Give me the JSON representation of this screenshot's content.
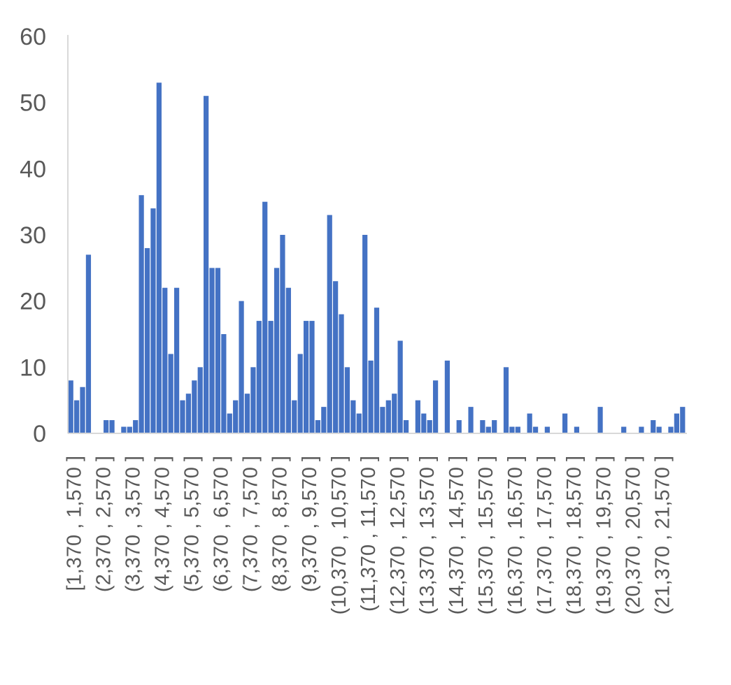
{
  "chart_data": {
    "type": "bar",
    "title": "",
    "xlabel": "",
    "ylabel": "",
    "ylim": [
      0,
      60
    ],
    "yticks": [
      0,
      10,
      20,
      30,
      40,
      50,
      60
    ],
    "grid": false,
    "legend": "none",
    "bar_color": "#4472c4",
    "axis_color": "#d9d9d9",
    "text_color": "#595959",
    "x_tick_labels": [
      "[1,370 , 1,570 ]",
      "(2,370 , 2,570 ]",
      "(3,370 , 3,570 ]",
      "(4,370 , 4,570 ]",
      "(5,370 , 5,570 ]",
      "(6,370 , 6,570 ]",
      "(7,370 , 7,570 ]",
      "(8,370 , 8,570 ]",
      "(9,370 , 9,570 ]",
      "(10,370 , 10,570 ]",
      "(11,370 , 11,570 ]",
      "(12,370 , 12,570 ]",
      "(13,370 , 13,570 ]",
      "(14,370 , 14,570 ]",
      "(15,370 , 15,570 ]",
      "(16,370 , 16,570 ]",
      "(17,370 , 17,570 ]",
      "(18,370 , 18,570 ]",
      "(19,370 , 19,570 ]",
      "(20,370 , 20,570 ]",
      "(21,370 , 21,570 ]"
    ],
    "bin_width": 200,
    "bin_start": 1370,
    "values": [
      8,
      5,
      7,
      27,
      0,
      0,
      2,
      2,
      0,
      1,
      1,
      2,
      36,
      28,
      34,
      53,
      22,
      12,
      22,
      5,
      6,
      8,
      10,
      51,
      25,
      25,
      15,
      3,
      5,
      20,
      6,
      10,
      17,
      35,
      17,
      25,
      30,
      22,
      5,
      12,
      17,
      17,
      2,
      4,
      33,
      23,
      18,
      10,
      5,
      3,
      30,
      11,
      19,
      4,
      5,
      6,
      14,
      2,
      0,
      5,
      3,
      2,
      8,
      0,
      11,
      0,
      2,
      0,
      4,
      0,
      2,
      1,
      2,
      0,
      10,
      1,
      1,
      0,
      3,
      1,
      0,
      1,
      0,
      0,
      3,
      0,
      1,
      0,
      0,
      0,
      4,
      0,
      0,
      0,
      1,
      0,
      0,
      1,
      0,
      2,
      1,
      0,
      1,
      3,
      4
    ]
  }
}
